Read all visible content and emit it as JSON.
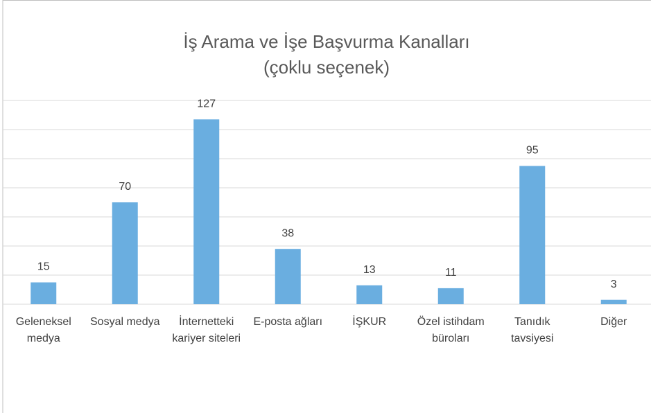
{
  "chart_data": {
    "type": "bar",
    "title": "İş Arama ve İşe Başvurma Kanalları",
    "subtitle": "(çoklu seçenek)",
    "categories": [
      "Geleneksel medya",
      "Sosyal medya",
      "İnternetteki kariyer siteleri",
      "E-posta ağları",
      "İŞKUR",
      "Özel istihdam büroları",
      "Tanıdık tavsiyesi",
      "Diğer"
    ],
    "values": [
      15,
      70,
      127,
      38,
      13,
      11,
      95,
      3
    ],
    "color": "#6aaee0",
    "ylim": [
      0,
      140
    ],
    "yticks": [
      0,
      20,
      40,
      60,
      80,
      100,
      120,
      140
    ],
    "grid": true
  }
}
